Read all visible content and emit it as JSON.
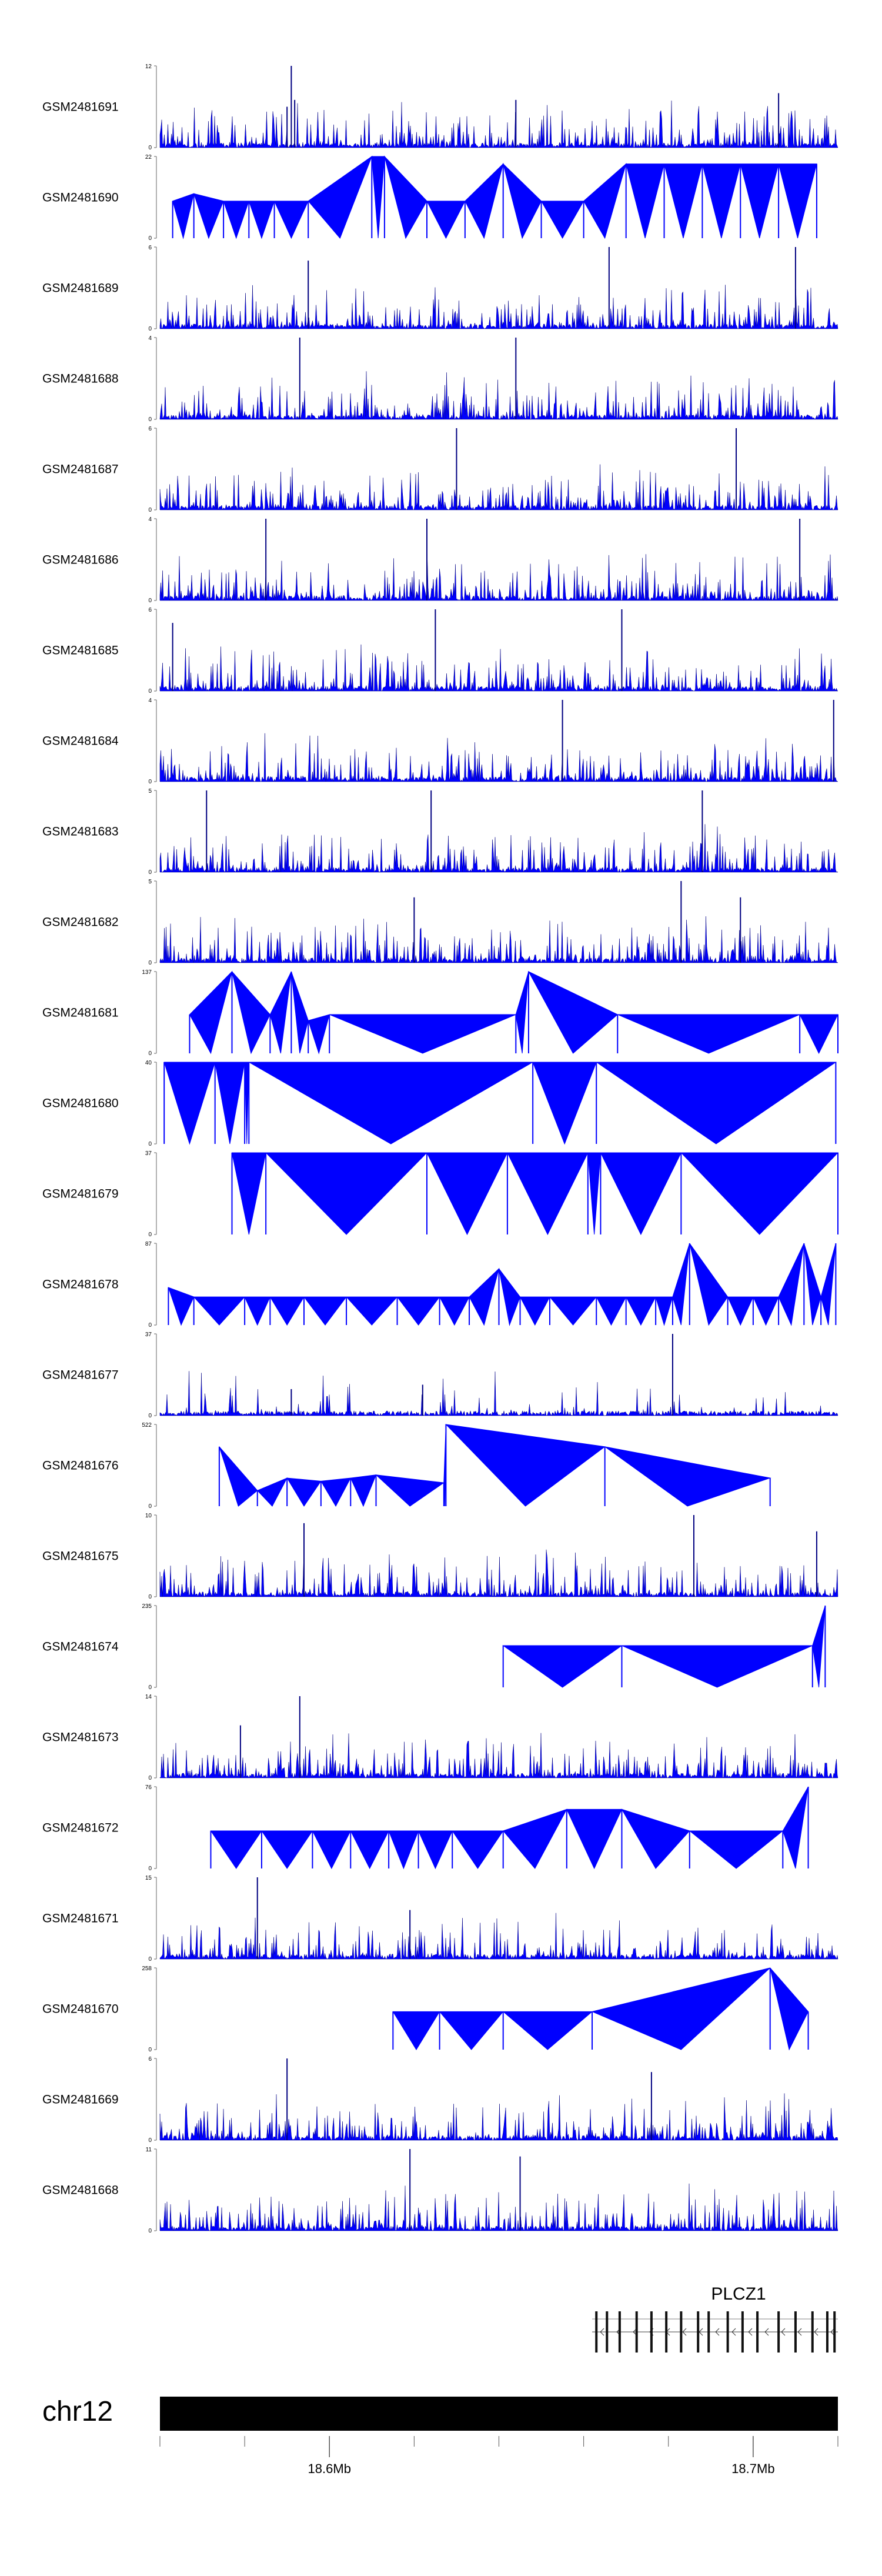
{
  "chart_data": {
    "type": "area",
    "title": "",
    "region": {
      "chromosome": "chr12",
      "range": [
        18560000,
        18720000
      ],
      "axis_ticks": [
        18560000,
        18580000,
        18600000,
        18620000,
        18640000,
        18660000,
        18680000,
        18700000,
        18720000
      ],
      "axis_labels": [
        {
          "pos": 18600000,
          "text": "18.6Mb"
        },
        {
          "pos": 18700000,
          "text": "18.7Mb"
        }
      ]
    },
    "gene": {
      "name": "PLCZ1",
      "strand": "-",
      "start": 18662000,
      "end": 18720000,
      "exons": [
        18663000,
        18665500,
        18668500,
        18672500,
        18676000,
        18679500,
        18683000,
        18687000,
        18689500,
        18694000,
        18697500,
        18701000,
        18706000,
        18710000,
        18714000,
        18717500,
        18719200
      ]
    },
    "colors": {
      "signal": "#0000ff",
      "outline": "#000080",
      "track_axis": "#666666",
      "chrom_bar": "#000000"
    },
    "tracks": [
      {
        "name": "GSM2481691",
        "ymax": 12,
        "ylabel_top": "12",
        "ylabel_bottom": "0",
        "kind": "dense",
        "peaks": [
          [
            18590000,
            6
          ],
          [
            18591000,
            12
          ],
          [
            18591800,
            7
          ],
          [
            18644000,
            7
          ],
          [
            18706000,
            8
          ]
        ]
      },
      {
        "name": "GSM2481690",
        "ymax": 22,
        "ylabel_top": "22",
        "ylabel_bottom": "0",
        "kind": "triangles",
        "peaks": [
          [
            18563000,
            10
          ],
          [
            18568000,
            12
          ],
          [
            18575000,
            10
          ],
          [
            18581000,
            10
          ],
          [
            18587000,
            10
          ],
          [
            18595000,
            10
          ],
          [
            18610000,
            22
          ],
          [
            18613000,
            22
          ],
          [
            18623000,
            10
          ],
          [
            18632000,
            10
          ],
          [
            18641000,
            20
          ],
          [
            18650000,
            10
          ],
          [
            18660000,
            10
          ],
          [
            18670000,
            20
          ],
          [
            18679000,
            20
          ],
          [
            18688000,
            20
          ],
          [
            18697000,
            20
          ],
          [
            18706000,
            20
          ],
          [
            18715000,
            20
          ]
        ]
      },
      {
        "name": "GSM2481689",
        "ymax": 6,
        "ylabel_top": "6",
        "ylabel_bottom": "0",
        "kind": "dense",
        "peaks": [
          [
            18595000,
            5
          ],
          [
            18666000,
            6
          ],
          [
            18710000,
            6
          ]
        ]
      },
      {
        "name": "GSM2481688",
        "ymax": 4,
        "ylabel_top": "4",
        "ylabel_bottom": "0",
        "kind": "dense",
        "peaks": [
          [
            18593000,
            4
          ],
          [
            18644000,
            4
          ]
        ]
      },
      {
        "name": "GSM2481687",
        "ymax": 6,
        "ylabel_top": "6",
        "ylabel_bottom": "0",
        "kind": "dense",
        "peaks": [
          [
            18630000,
            6
          ],
          [
            18696000,
            6
          ]
        ]
      },
      {
        "name": "GSM2481686",
        "ymax": 4,
        "ylabel_top": "4",
        "ylabel_bottom": "0",
        "kind": "dense",
        "peaks": [
          [
            18585000,
            4
          ],
          [
            18623000,
            4
          ],
          [
            18711000,
            4
          ]
        ]
      },
      {
        "name": "GSM2481685",
        "ymax": 6,
        "ylabel_top": "6",
        "ylabel_bottom": "0",
        "kind": "dense",
        "peaks": [
          [
            18563000,
            5
          ],
          [
            18625000,
            6
          ],
          [
            18669000,
            6
          ]
        ]
      },
      {
        "name": "GSM2481684",
        "ymax": 4,
        "ylabel_top": "4",
        "ylabel_bottom": "0",
        "kind": "dense",
        "peaks": [
          [
            18655000,
            4
          ],
          [
            18719000,
            4
          ]
        ]
      },
      {
        "name": "GSM2481683",
        "ymax": 5,
        "ylabel_top": "5",
        "ylabel_bottom": "0",
        "kind": "dense",
        "peaks": [
          [
            18571000,
            5
          ],
          [
            18624000,
            5
          ],
          [
            18688000,
            5
          ]
        ]
      },
      {
        "name": "GSM2481682",
        "ymax": 5,
        "ylabel_top": "5",
        "ylabel_bottom": "0",
        "kind": "dense",
        "peaks": [
          [
            18620000,
            4
          ],
          [
            18683000,
            5
          ],
          [
            18697000,
            4
          ]
        ]
      },
      {
        "name": "GSM2481681",
        "ymax": 137,
        "ylabel_top": "137",
        "ylabel_bottom": "0",
        "kind": "triangles",
        "peaks": [
          [
            18567000,
            65
          ],
          [
            18577000,
            137
          ],
          [
            18586000,
            65
          ],
          [
            18591000,
            137
          ],
          [
            18595000,
            55
          ],
          [
            18600000,
            65
          ],
          [
            18644000,
            65
          ],
          [
            18647000,
            137
          ],
          [
            18668000,
            65
          ],
          [
            18711000,
            65
          ],
          [
            18720000,
            65
          ]
        ]
      },
      {
        "name": "GSM2481680",
        "ymax": 40,
        "ylabel_top": "40",
        "ylabel_bottom": "0",
        "kind": "triangles",
        "peaks": [
          [
            18561000,
            40
          ],
          [
            18573000,
            40
          ],
          [
            18580000,
            40
          ],
          [
            18581000,
            40
          ],
          [
            18648000,
            40
          ],
          [
            18663000,
            40
          ],
          [
            18719500,
            40
          ]
        ]
      },
      {
        "name": "GSM2481679",
        "ymax": 37,
        "ylabel_top": "37",
        "ylabel_bottom": "0",
        "kind": "triangles",
        "peaks": [
          [
            18577000,
            37
          ],
          [
            18585000,
            37
          ],
          [
            18623000,
            37
          ],
          [
            18642000,
            37
          ],
          [
            18661000,
            37
          ],
          [
            18664000,
            37
          ],
          [
            18683000,
            37
          ],
          [
            18720000,
            37
          ]
        ]
      },
      {
        "name": "GSM2481678",
        "ymax": 87,
        "ylabel_top": "87",
        "ylabel_bottom": "0",
        "kind": "triangles",
        "peaks": [
          [
            18562000,
            40
          ],
          [
            18568000,
            30
          ],
          [
            18580000,
            30
          ],
          [
            18586000,
            30
          ],
          [
            18594000,
            30
          ],
          [
            18604000,
            30
          ],
          [
            18616000,
            30
          ],
          [
            18626000,
            30
          ],
          [
            18633000,
            30
          ],
          [
            18640000,
            60
          ],
          [
            18645000,
            30
          ],
          [
            18652000,
            30
          ],
          [
            18663000,
            30
          ],
          [
            18670000,
            30
          ],
          [
            18677000,
            30
          ],
          [
            18681000,
            30
          ],
          [
            18685000,
            87
          ],
          [
            18694000,
            30
          ],
          [
            18700000,
            30
          ],
          [
            18706000,
            30
          ],
          [
            18712000,
            87
          ],
          [
            18716000,
            30
          ],
          [
            18719500,
            87
          ]
        ]
      },
      {
        "name": "GSM2481677",
        "ymax": 37,
        "ylabel_top": "37",
        "ylabel_bottom": "0",
        "kind": "sparse",
        "peaks": [
          [
            18591000,
            12
          ],
          [
            18622000,
            14
          ],
          [
            18681000,
            37
          ]
        ]
      },
      {
        "name": "GSM2481676",
        "ymax": 522,
        "ylabel_top": "522",
        "ylabel_bottom": "0",
        "kind": "triangles",
        "peaks": [
          [
            18574000,
            380
          ],
          [
            18583000,
            100
          ],
          [
            18590000,
            180
          ],
          [
            18598000,
            160
          ],
          [
            18605000,
            180
          ],
          [
            18611000,
            200
          ],
          [
            18627000,
            150
          ],
          [
            18627500,
            522
          ],
          [
            18665000,
            380
          ],
          [
            18704000,
            180
          ]
        ]
      },
      {
        "name": "GSM2481675",
        "ymax": 10,
        "ylabel_top": "10",
        "ylabel_bottom": "0",
        "kind": "dense",
        "peaks": [
          [
            18594000,
            9
          ],
          [
            18686000,
            10
          ],
          [
            18715000,
            8
          ]
        ]
      },
      {
        "name": "GSM2481674",
        "ymax": 235,
        "ylabel_top": "235",
        "ylabel_bottom": "0",
        "kind": "triangles",
        "peaks": [
          [
            18641000,
            120
          ],
          [
            18669000,
            120
          ],
          [
            18714000,
            120
          ],
          [
            18717000,
            235
          ]
        ]
      },
      {
        "name": "GSM2481673",
        "ymax": 14,
        "ylabel_top": "14",
        "ylabel_bottom": "0",
        "kind": "dense",
        "peaks": [
          [
            18579000,
            9
          ],
          [
            18593000,
            14
          ]
        ]
      },
      {
        "name": "GSM2481672",
        "ymax": 76,
        "ylabel_top": "76",
        "ylabel_bottom": "0",
        "kind": "triangles",
        "peaks": [
          [
            18572000,
            35
          ],
          [
            18584000,
            35
          ],
          [
            18596000,
            35
          ],
          [
            18605000,
            35
          ],
          [
            18614000,
            35
          ],
          [
            18621000,
            35
          ],
          [
            18629000,
            35
          ],
          [
            18641000,
            35
          ],
          [
            18656000,
            55
          ],
          [
            18669000,
            55
          ],
          [
            18685000,
            35
          ],
          [
            18707000,
            35
          ],
          [
            18713000,
            76
          ]
        ]
      },
      {
        "name": "GSM2481671",
        "ymax": 15,
        "ylabel_top": "15",
        "ylabel_bottom": "0",
        "kind": "dense",
        "peaks": [
          [
            18583000,
            15
          ],
          [
            18619000,
            9
          ]
        ]
      },
      {
        "name": "GSM2481670",
        "ymax": 258,
        "ylabel_top": "258",
        "ylabel_bottom": "0",
        "kind": "triangles",
        "peaks": [
          [
            18615000,
            120
          ],
          [
            18626000,
            120
          ],
          [
            18641000,
            120
          ],
          [
            18662000,
            120
          ],
          [
            18704000,
            258
          ],
          [
            18713000,
            120
          ]
        ]
      },
      {
        "name": "GSM2481669",
        "ymax": 6,
        "ylabel_top": "6",
        "ylabel_bottom": "0",
        "kind": "dense",
        "peaks": [
          [
            18590000,
            6
          ],
          [
            18676000,
            5
          ]
        ]
      },
      {
        "name": "GSM2481668",
        "ymax": 11,
        "ylabel_top": "11",
        "ylabel_bottom": "0",
        "kind": "dense",
        "peaks": [
          [
            18619000,
            11
          ],
          [
            18645000,
            10
          ]
        ]
      }
    ]
  }
}
